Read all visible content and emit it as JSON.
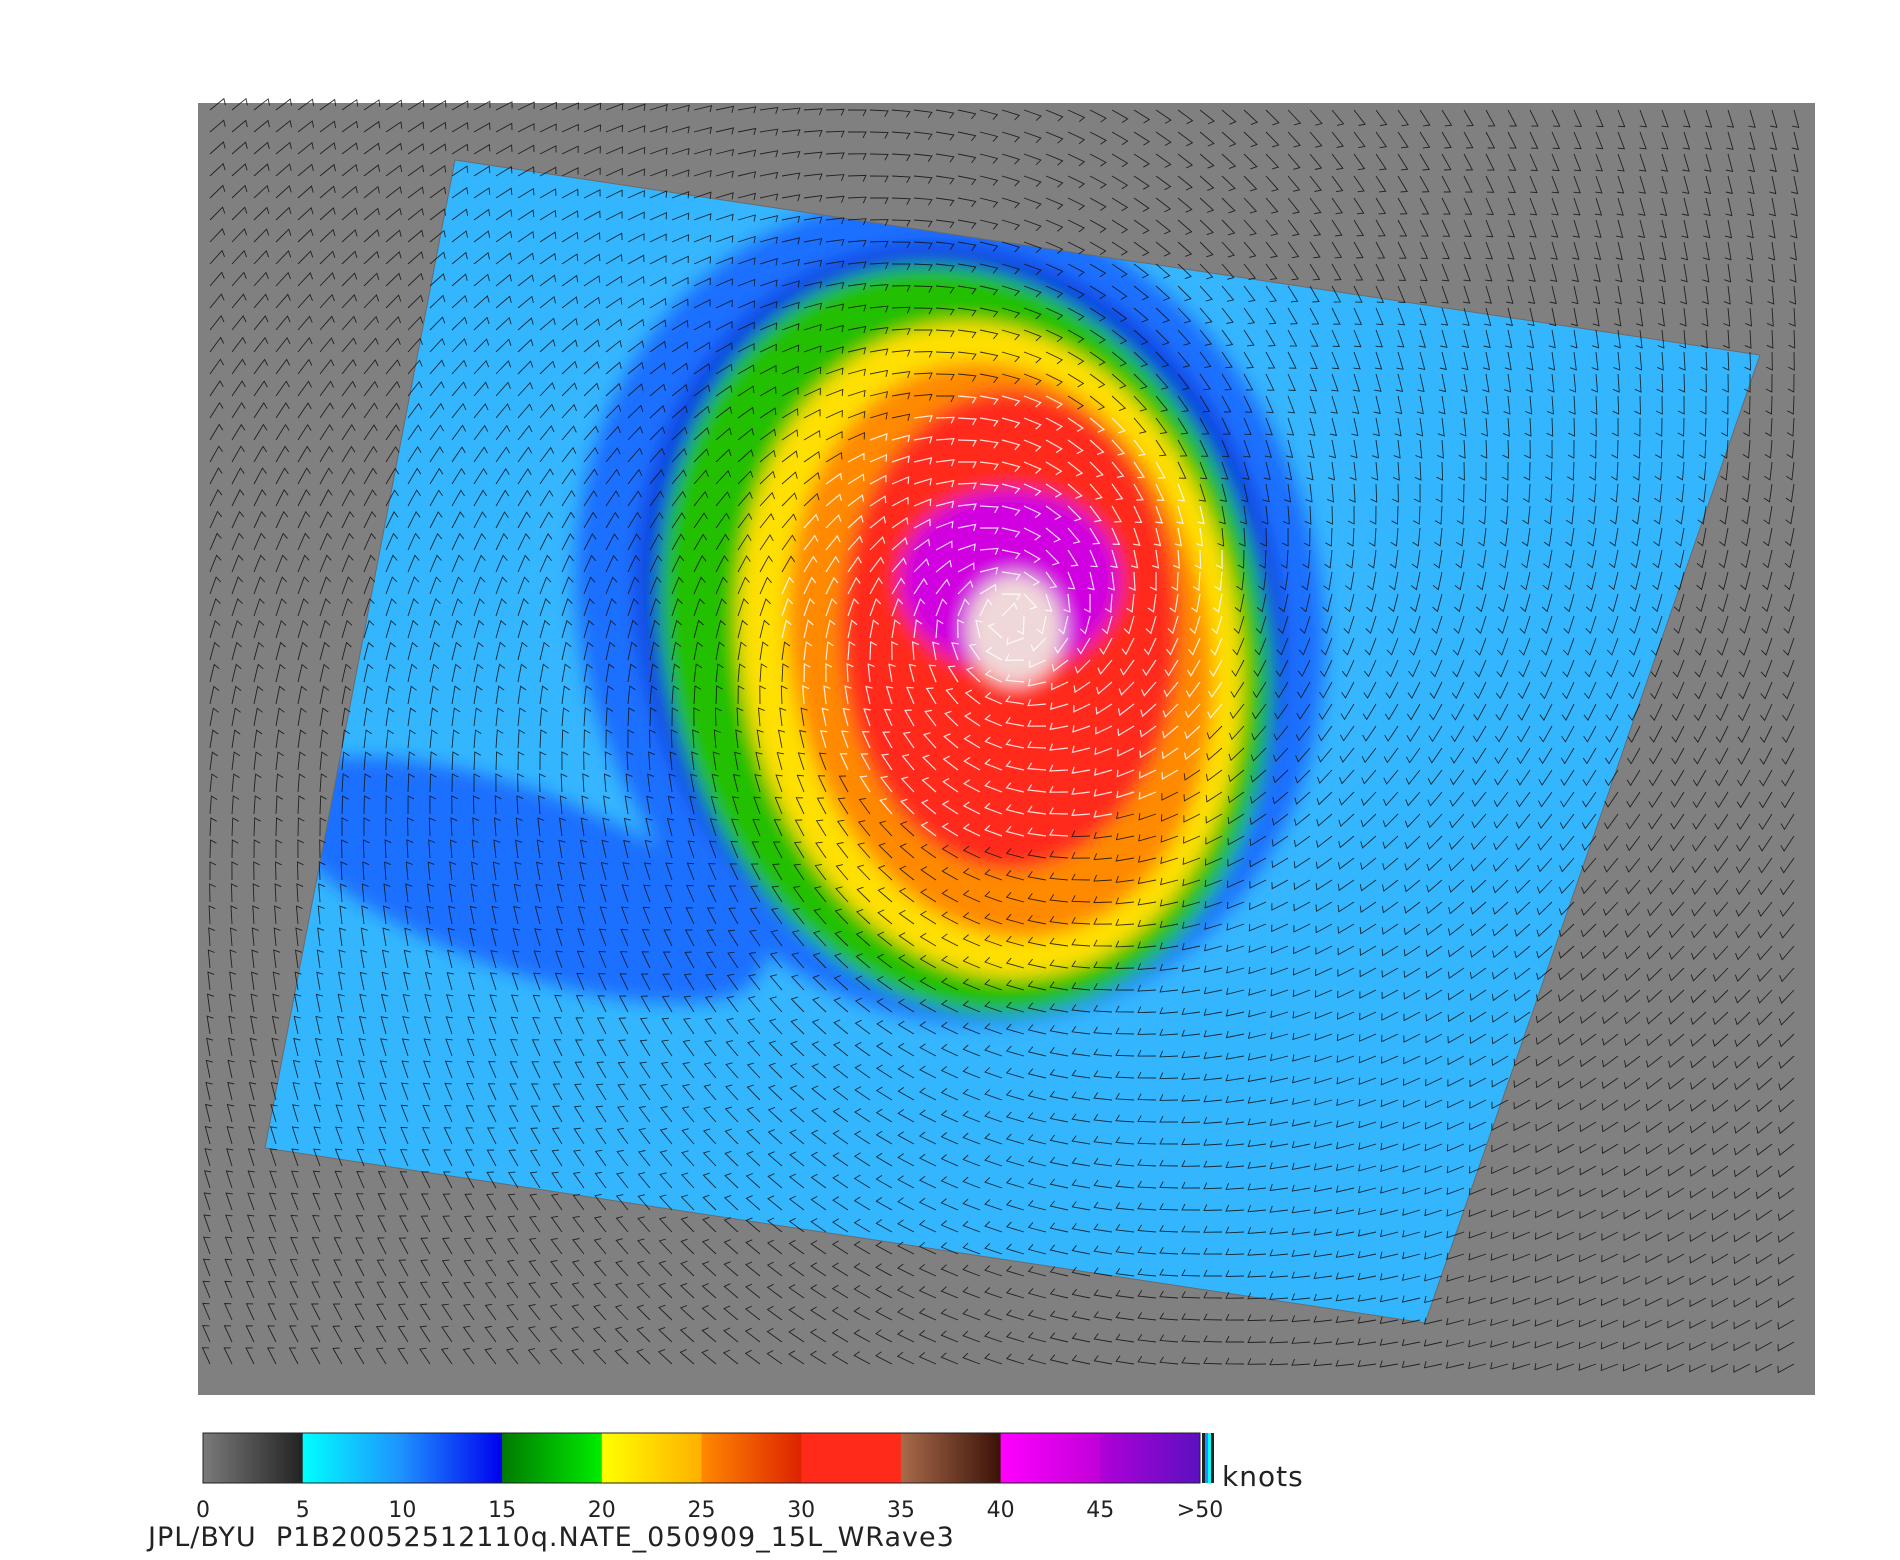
{
  "footer": {
    "label": "JPL/BYU  P1B20052512110q.NATE_050909_15L_WRave3"
  },
  "colorbar": {
    "unit": "knots",
    "ticks": [
      "0",
      "5",
      "10",
      "15",
      "20",
      "25",
      "30",
      "35",
      "40",
      "45",
      ">50"
    ],
    "segments": [
      {
        "from": 0,
        "to": 5,
        "colors": [
          "#7a7a7a",
          "#222222"
        ]
      },
      {
        "from": 5,
        "to": 10,
        "colors": [
          "#00ffff",
          "#1e90ff"
        ]
      },
      {
        "from": 10,
        "to": 15,
        "colors": [
          "#1e90ff",
          "#0000ee"
        ]
      },
      {
        "from": 15,
        "to": 20,
        "colors": [
          "#007a00",
          "#00ee00"
        ]
      },
      {
        "from": 20,
        "to": 25,
        "colors": [
          "#ffff00",
          "#ffb000"
        ]
      },
      {
        "from": 25,
        "to": 30,
        "colors": [
          "#ff8800",
          "#dd2200"
        ]
      },
      {
        "from": 30,
        "to": 35,
        "colors": [
          "#ff2a1a",
          "#ff2a1a"
        ]
      },
      {
        "from": 35,
        "to": 40,
        "colors": [
          "#a86a4a",
          "#3a1208"
        ]
      },
      {
        "from": 40,
        "to": 45,
        "colors": [
          "#ff00ff",
          "#c000d8"
        ]
      },
      {
        "from": 45,
        "to": 50,
        "colors": [
          "#b000d8",
          "#5a10c0"
        ]
      }
    ]
  },
  "map": {
    "background_color": "#808080",
    "storm_levels_knots": [
      7,
      12,
      17,
      22,
      28,
      33,
      38,
      44,
      52
    ],
    "level_colors": [
      "#34b6ff",
      "#1e70ff",
      "#0c3ce0",
      "#22c000",
      "#ffe000",
      "#ff8a00",
      "#ff2a1a",
      "#d000e0",
      "#f0d8d8"
    ]
  }
}
